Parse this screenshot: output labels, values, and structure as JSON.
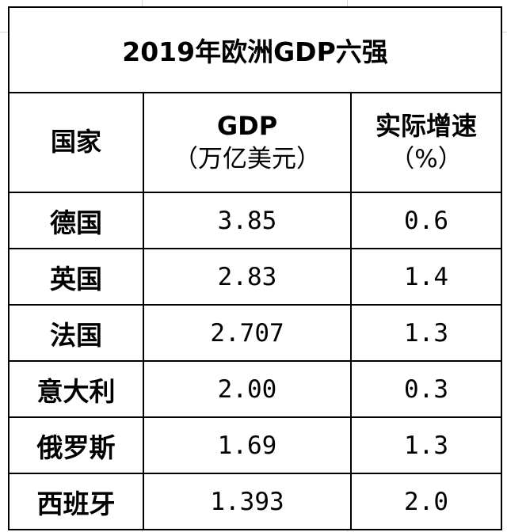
{
  "table": {
    "title": "2019年欧洲GDP六强",
    "headers": {
      "country": "国家",
      "gdp": "GDP",
      "gdp_unit": "（万亿美元）",
      "growth": "实际增速",
      "growth_unit": "（%）"
    },
    "rows": [
      {
        "country": "德国",
        "gdp": "3.85",
        "growth": "0.6"
      },
      {
        "country": "英国",
        "gdp": "2.83",
        "growth": "1.4"
      },
      {
        "country": "法国",
        "gdp": "2.707",
        "growth": "1.3"
      },
      {
        "country": "意大利",
        "gdp": "2.00",
        "growth": "0.3"
      },
      {
        "country": "俄罗斯",
        "gdp": "1.69",
        "growth": "1.3"
      },
      {
        "country": "西班牙",
        "gdp": "1.393",
        "growth": "2.0"
      }
    ]
  }
}
